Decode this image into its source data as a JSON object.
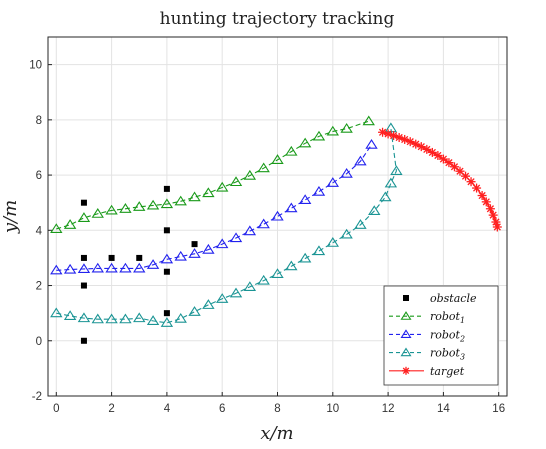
{
  "chart_data": {
    "type": "line",
    "title": "hunting trajectory tracking",
    "xlabel": "x/m",
    "ylabel": "y/m",
    "xlim": [
      -0.3,
      16.3
    ],
    "ylim": [
      -2,
      11
    ],
    "xticks": [
      0,
      2,
      4,
      6,
      8,
      10,
      12,
      14,
      16
    ],
    "yticks": [
      -2,
      0,
      2,
      4,
      6,
      8,
      10
    ],
    "grid": true,
    "legend_position": "bottom-right",
    "legend": [
      {
        "key": "obstacle",
        "base": "obstacle",
        "sub": "",
        "color": "#000000",
        "marker": "square",
        "line": "none"
      },
      {
        "key": "robot1",
        "base": "robot",
        "sub": "1",
        "color": "#1a9a1a",
        "marker": "triangle",
        "line": "dashed"
      },
      {
        "key": "robot2",
        "base": "robot",
        "sub": "2",
        "color": "#2222ee",
        "marker": "triangle",
        "line": "dashed"
      },
      {
        "key": "robot3",
        "base": "robot",
        "sub": "3",
        "color": "#1a9494",
        "marker": "triangle",
        "line": "dashed"
      },
      {
        "key": "target",
        "base": "target",
        "sub": "",
        "color": "#ff2020",
        "marker": "star",
        "line": "solid"
      }
    ],
    "obstacles": [
      [
        1,
        5
      ],
      [
        1,
        3
      ],
      [
        1,
        2
      ],
      [
        1,
        0
      ],
      [
        2,
        3
      ],
      [
        3,
        3
      ],
      [
        4,
        5.5
      ],
      [
        4,
        4
      ],
      [
        4,
        2.5
      ],
      [
        4,
        1
      ],
      [
        5,
        3.5
      ]
    ],
    "series": [
      {
        "name": "robot1",
        "color": "#1a9a1a",
        "marker": "triangle",
        "points": [
          [
            0,
            4.05
          ],
          [
            0.5,
            4.2
          ],
          [
            1,
            4.45
          ],
          [
            1.5,
            4.6
          ],
          [
            2,
            4.72
          ],
          [
            2.5,
            4.78
          ],
          [
            3,
            4.85
          ],
          [
            3.5,
            4.9
          ],
          [
            4,
            4.95
          ],
          [
            4.5,
            5.05
          ],
          [
            5,
            5.2
          ],
          [
            5.5,
            5.35
          ],
          [
            6,
            5.55
          ],
          [
            6.5,
            5.75
          ],
          [
            7,
            5.98
          ],
          [
            7.5,
            6.25
          ],
          [
            8,
            6.55
          ],
          [
            8.5,
            6.85
          ],
          [
            9,
            7.15
          ],
          [
            9.5,
            7.4
          ],
          [
            10,
            7.58
          ],
          [
            10.5,
            7.68
          ],
          [
            11.3,
            7.95
          ]
        ]
      },
      {
        "name": "robot2",
        "color": "#2222ee",
        "marker": "triangle",
        "points": [
          [
            0,
            2.55
          ],
          [
            0.5,
            2.58
          ],
          [
            1,
            2.6
          ],
          [
            1.5,
            2.62
          ],
          [
            2,
            2.62
          ],
          [
            2.5,
            2.62
          ],
          [
            3,
            2.62
          ],
          [
            3.5,
            2.75
          ],
          [
            4,
            2.95
          ],
          [
            4.5,
            3.05
          ],
          [
            5,
            3.15
          ],
          [
            5.5,
            3.3
          ],
          [
            6,
            3.5
          ],
          [
            6.5,
            3.72
          ],
          [
            7,
            3.97
          ],
          [
            7.5,
            4.22
          ],
          [
            8,
            4.5
          ],
          [
            8.5,
            4.8
          ],
          [
            9,
            5.1
          ],
          [
            9.5,
            5.4
          ],
          [
            10,
            5.72
          ],
          [
            10.5,
            6.05
          ],
          [
            11,
            6.5
          ],
          [
            11.4,
            7.1
          ]
        ]
      },
      {
        "name": "robot3",
        "color": "#1a9494",
        "marker": "triangle",
        "points": [
          [
            0,
            1.0
          ],
          [
            0.5,
            0.9
          ],
          [
            1,
            0.82
          ],
          [
            1.5,
            0.78
          ],
          [
            2,
            0.78
          ],
          [
            2.5,
            0.78
          ],
          [
            3,
            0.82
          ],
          [
            3.5,
            0.72
          ],
          [
            4,
            0.65
          ],
          [
            4.5,
            0.8
          ],
          [
            5,
            1.05
          ],
          [
            5.5,
            1.3
          ],
          [
            6,
            1.52
          ],
          [
            6.5,
            1.72
          ],
          [
            7,
            1.95
          ],
          [
            7.5,
            2.18
          ],
          [
            8,
            2.42
          ],
          [
            8.5,
            2.7
          ],
          [
            9,
            2.98
          ],
          [
            9.5,
            3.25
          ],
          [
            10,
            3.55
          ],
          [
            10.5,
            3.85
          ],
          [
            11,
            4.2
          ],
          [
            11.5,
            4.7
          ],
          [
            11.9,
            5.2
          ],
          [
            12.1,
            5.7
          ],
          [
            12.3,
            6.15
          ],
          [
            12.1,
            7.7
          ]
        ]
      },
      {
        "name": "target",
        "color": "#ff2020",
        "marker": "star",
        "points": [
          [
            11.8,
            7.55
          ],
          [
            12.0,
            7.49
          ],
          [
            12.2,
            7.43
          ],
          [
            12.4,
            7.36
          ],
          [
            12.6,
            7.29
          ],
          [
            12.8,
            7.21
          ],
          [
            13.0,
            7.12
          ],
          [
            13.2,
            7.03
          ],
          [
            13.4,
            6.93
          ],
          [
            13.6,
            6.82
          ],
          [
            13.8,
            6.71
          ],
          [
            14.0,
            6.58
          ],
          [
            14.2,
            6.45
          ],
          [
            14.4,
            6.3
          ],
          [
            14.6,
            6.14
          ],
          [
            14.8,
            5.96
          ],
          [
            15.0,
            5.76
          ],
          [
            15.2,
            5.53
          ],
          [
            15.4,
            5.26
          ],
          [
            15.55,
            5.03
          ],
          [
            15.7,
            4.78
          ],
          [
            15.8,
            4.55
          ],
          [
            15.9,
            4.3
          ],
          [
            15.95,
            4.12
          ]
        ]
      }
    ]
  }
}
